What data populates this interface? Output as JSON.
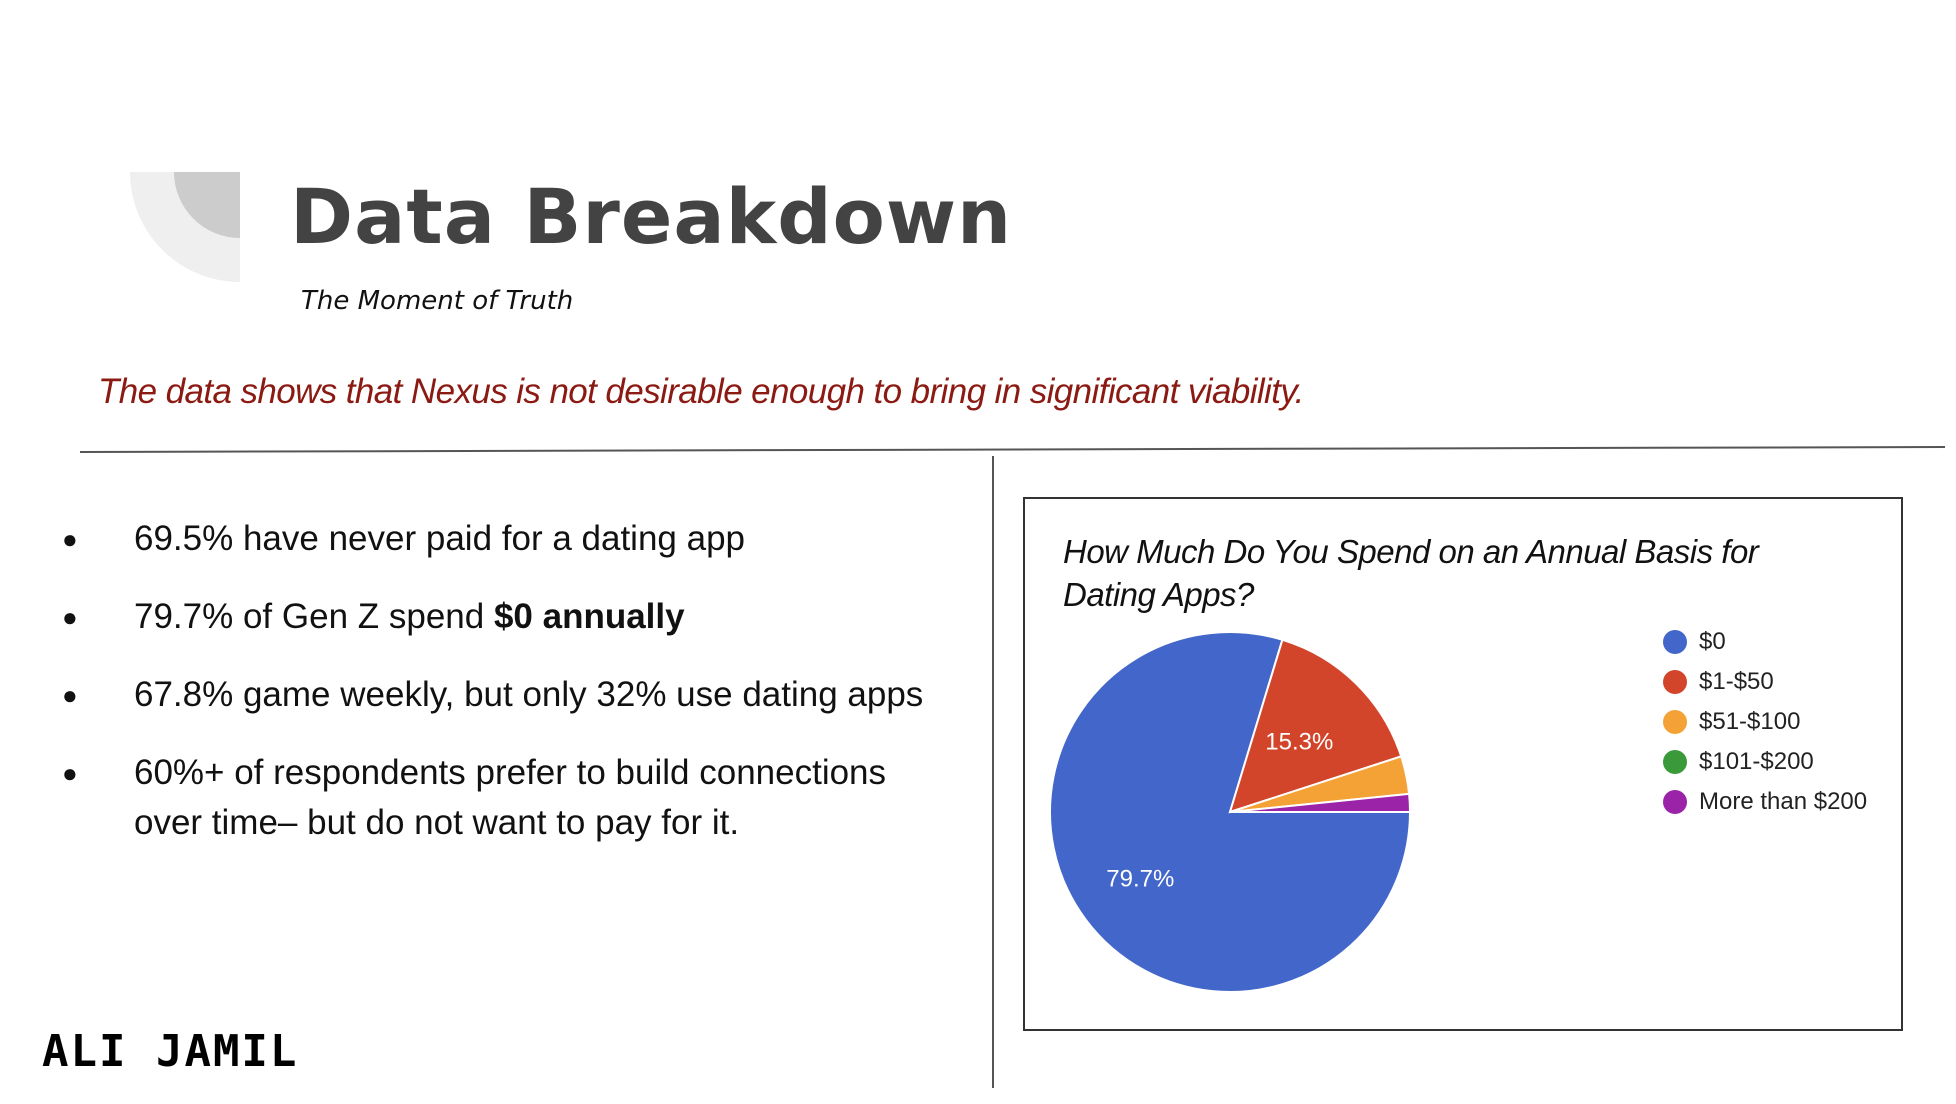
{
  "slide": {
    "title": "Data Breakdown",
    "subtitle": "The Moment of Truth",
    "headline": "The data shows that Nexus is not desirable enough to bring in significant viability.",
    "headline_color": "#8b1a13",
    "brand": "ALI JAMIL"
  },
  "bullets": [
    {
      "text": "69.5% have never paid for a dating app",
      "bold": ""
    },
    {
      "text": "79.7% of Gen Z spend ",
      "bold": "$0 annually"
    },
    {
      "text": "67.8% game weekly, but only 32% use dating apps",
      "bold": ""
    },
    {
      "text": "60%+ of respondents prefer to build connections over time– but do not want to pay for it.",
      "bold": ""
    }
  ],
  "bullet_glyph": "●",
  "chart_data": {
    "type": "pie",
    "title": "How Much Do You Spend on an Annual Basis for Dating Apps?",
    "legend_position": "right",
    "slices": [
      {
        "label": "$0",
        "value": 79.7,
        "display": "79.7%",
        "color": "#4266c9"
      },
      {
        "label": "$1-$50",
        "value": 15.3,
        "display": "15.3%",
        "color": "#d2452a"
      },
      {
        "label": "$51-$100",
        "value": 3.4,
        "display": "",
        "color": "#f4a236"
      },
      {
        "label": "$101-$200",
        "value": 0.0,
        "display": "",
        "color": "#3a9a3a"
      },
      {
        "label": "More than $200",
        "value": 1.6,
        "display": "",
        "color": "#9a23a8"
      }
    ]
  }
}
